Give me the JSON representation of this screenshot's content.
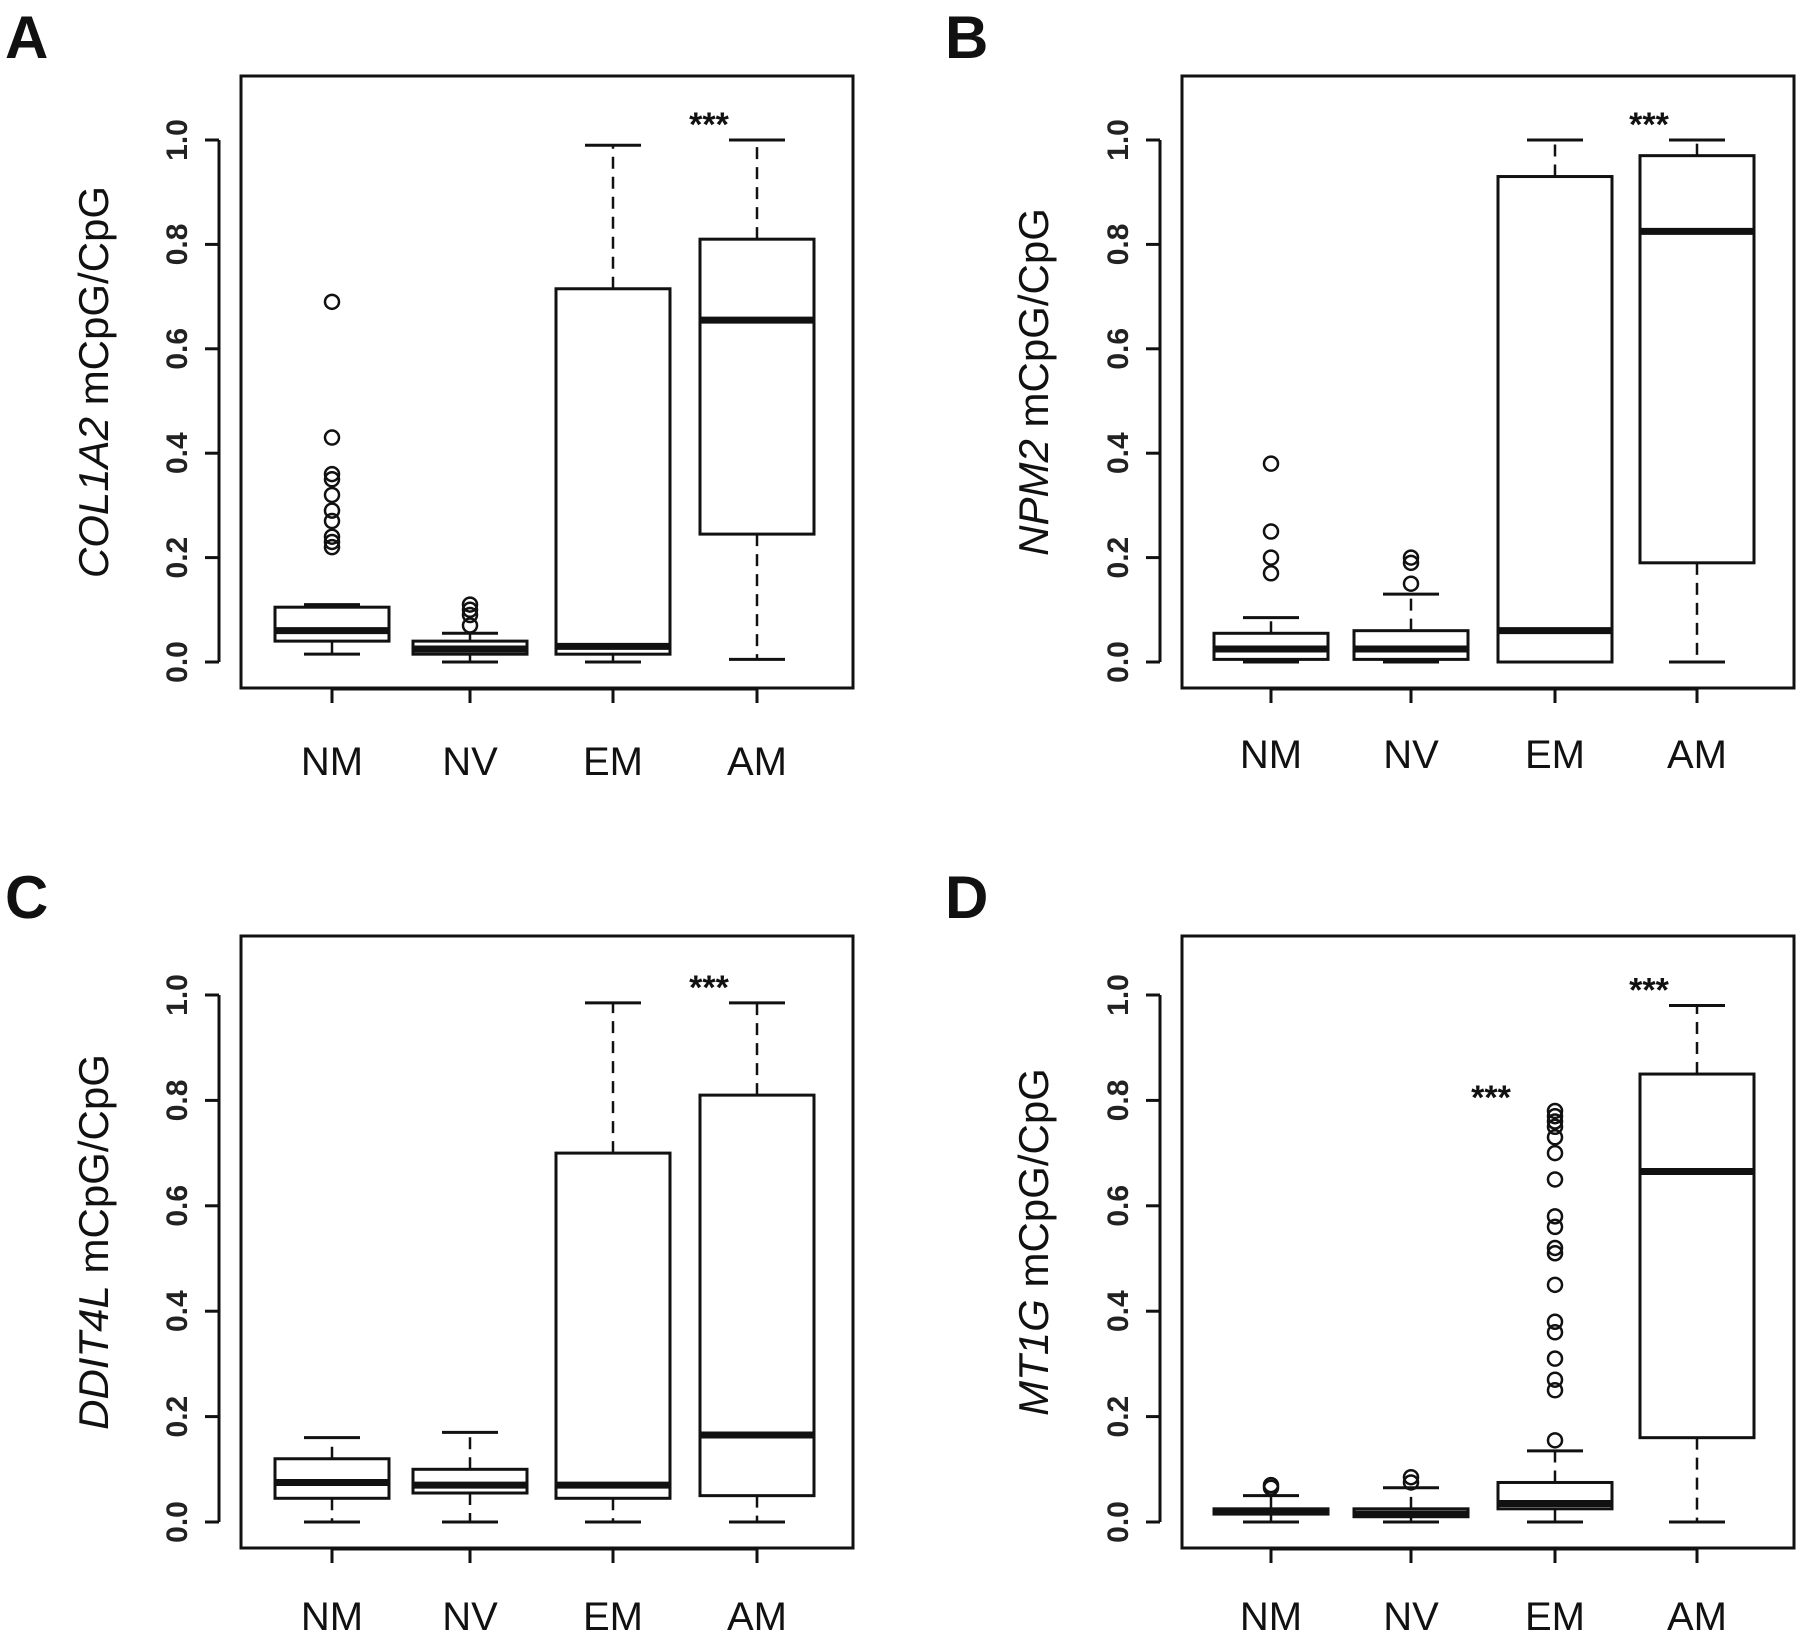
{
  "figure": {
    "panels": [
      {
        "letter": "A",
        "gene": "COL1A2",
        "ylabel_suffix": "mCpG/CpG"
      },
      {
        "letter": "B",
        "gene": "NPM2",
        "ylabel_suffix": "mCpG/CpG"
      },
      {
        "letter": "C",
        "gene": "DDIT4L",
        "ylabel_suffix": "mCpG/CpG"
      },
      {
        "letter": "D",
        "gene": "MT1G",
        "ylabel_suffix": "mCpG/CpG"
      }
    ]
  },
  "chart_data": [
    {
      "type": "boxplot",
      "panel": "A",
      "ylabel": "COL1A2 mCpG/CpG",
      "categories": [
        "NM",
        "NV",
        "EM",
        "AM"
      ],
      "yticks": [
        "0.0",
        "0.2",
        "0.4",
        "0.6",
        "0.8",
        "1.0"
      ],
      "ylim": [
        0.0,
        1.0
      ],
      "boxes": [
        {
          "category": "NM",
          "whisker_low": 0.015,
          "q1": 0.04,
          "median": 0.06,
          "q3": 0.105,
          "whisker_high": 0.11,
          "outliers": [
            0.22,
            0.23,
            0.24,
            0.27,
            0.29,
            0.32,
            0.35,
            0.36,
            0.43,
            0.69
          ]
        },
        {
          "category": "NV",
          "whisker_low": 0.0,
          "q1": 0.015,
          "median": 0.025,
          "q3": 0.04,
          "whisker_high": 0.055,
          "outliers": [
            0.07,
            0.09,
            0.1,
            0.11
          ]
        },
        {
          "category": "EM",
          "whisker_low": 0.0,
          "q1": 0.015,
          "median": 0.03,
          "q3": 0.715,
          "whisker_high": 0.99,
          "outliers": []
        },
        {
          "category": "AM",
          "whisker_low": 0.005,
          "q1": 0.245,
          "median": 0.655,
          "q3": 0.81,
          "whisker_high": 1.0,
          "outliers": []
        }
      ],
      "annotations": [
        {
          "category": "AM",
          "text": "***"
        }
      ]
    },
    {
      "type": "boxplot",
      "panel": "B",
      "ylabel": "NPM2 mCpG/CpG",
      "categories": [
        "NM",
        "NV",
        "EM",
        "AM"
      ],
      "yticks": [
        "0.0",
        "0.2",
        "0.4",
        "0.6",
        "0.8",
        "1.0"
      ],
      "ylim": [
        0.0,
        1.0
      ],
      "boxes": [
        {
          "category": "NM",
          "whisker_low": 0.0,
          "q1": 0.005,
          "median": 0.025,
          "q3": 0.055,
          "whisker_high": 0.085,
          "outliers": [
            0.17,
            0.2,
            0.25,
            0.38
          ]
        },
        {
          "category": "NV",
          "whisker_low": 0.0,
          "q1": 0.005,
          "median": 0.025,
          "q3": 0.06,
          "whisker_high": 0.13,
          "outliers": [
            0.15,
            0.19,
            0.2
          ]
        },
        {
          "category": "EM",
          "whisker_low": 0.0,
          "q1": 0.0,
          "median": 0.06,
          "q3": 0.93,
          "whisker_high": 1.0,
          "outliers": []
        },
        {
          "category": "AM",
          "whisker_low": 0.0,
          "q1": 0.19,
          "median": 0.825,
          "q3": 0.97,
          "whisker_high": 1.0,
          "outliers": []
        }
      ],
      "annotations": [
        {
          "category": "AM",
          "text": "***"
        }
      ]
    },
    {
      "type": "boxplot",
      "panel": "C",
      "ylabel": "DDIT4L mCpG/CpG",
      "categories": [
        "NM",
        "NV",
        "EM",
        "AM"
      ],
      "yticks": [
        "0.0",
        "0.2",
        "0.4",
        "0.6",
        "0.8",
        "1.0"
      ],
      "ylim": [
        0.0,
        1.0
      ],
      "boxes": [
        {
          "category": "NM",
          "whisker_low": 0.0,
          "q1": 0.045,
          "median": 0.075,
          "q3": 0.12,
          "whisker_high": 0.16,
          "outliers": []
        },
        {
          "category": "NV",
          "whisker_low": 0.0,
          "q1": 0.055,
          "median": 0.07,
          "q3": 0.1,
          "whisker_high": 0.17,
          "outliers": []
        },
        {
          "category": "EM",
          "whisker_low": 0.0,
          "q1": 0.045,
          "median": 0.07,
          "q3": 0.7,
          "whisker_high": 0.985,
          "outliers": []
        },
        {
          "category": "AM",
          "whisker_low": 0.0,
          "q1": 0.05,
          "median": 0.165,
          "q3": 0.81,
          "whisker_high": 0.985,
          "outliers": []
        }
      ],
      "annotations": [
        {
          "category": "AM",
          "text": "***"
        }
      ]
    },
    {
      "type": "boxplot",
      "panel": "D",
      "ylabel": "MT1G mCpG/CpG",
      "categories": [
        "NM",
        "NV",
        "EM",
        "AM"
      ],
      "yticks": [
        "0.0",
        "0.2",
        "0.4",
        "0.6",
        "0.8",
        "1.0"
      ],
      "ylim": [
        0.0,
        1.0
      ],
      "boxes": [
        {
          "category": "NM",
          "whisker_low": 0.0,
          "q1": 0.015,
          "median": 0.02,
          "q3": 0.025,
          "whisker_high": 0.05,
          "outliers": [
            0.065,
            0.07
          ]
        },
        {
          "category": "NV",
          "whisker_low": 0.0,
          "q1": 0.01,
          "median": 0.015,
          "q3": 0.025,
          "whisker_high": 0.065,
          "outliers": [
            0.075,
            0.085
          ]
        },
        {
          "category": "EM",
          "whisker_low": 0.0,
          "q1": 0.025,
          "median": 0.035,
          "q3": 0.075,
          "whisker_high": 0.135,
          "outliers": [
            0.155,
            0.25,
            0.27,
            0.31,
            0.36,
            0.38,
            0.45,
            0.51,
            0.52,
            0.56,
            0.58,
            0.65,
            0.7,
            0.73,
            0.75,
            0.76,
            0.77,
            0.78
          ]
        },
        {
          "category": "AM",
          "whisker_low": 0.0,
          "q1": 0.16,
          "median": 0.665,
          "q3": 0.85,
          "whisker_high": 0.98,
          "outliers": []
        }
      ],
      "annotations": [
        {
          "category": "EM",
          "text": "***"
        },
        {
          "category": "AM",
          "text": "***"
        }
      ]
    }
  ]
}
